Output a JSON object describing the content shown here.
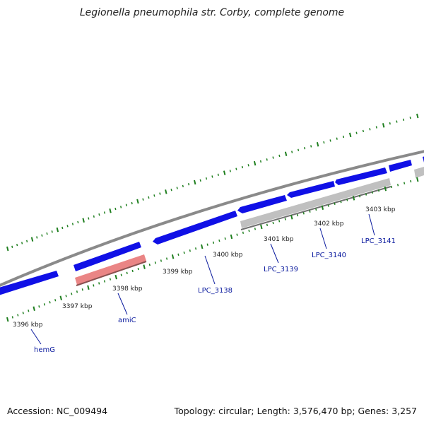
{
  "title": "Legionella pneumophila str. Corby, complete genome",
  "footer": {
    "accession": "Accession: NC_009494",
    "summary": "Topology: circular; Length: 3,576,470 bp; Genes: 3,257"
  },
  "colors": {
    "cds_forward": "#1010e6",
    "cds_reverse_gray": "#c0c0c0",
    "rna": "#ea8585",
    "backbone": "#8a8a8a",
    "ticks": "#1f7f1f",
    "gene_label": "#0a1a9e",
    "scale_label": "#222222"
  },
  "scale_labels": [
    "3396 kbp",
    "3397 kbp",
    "3398 kbp",
    "3399 kbp",
    "3400 kbp",
    "3401 kbp",
    "3402 kbp",
    "3403 kbp"
  ],
  "gene_labels": [
    "hemG",
    "amiC",
    "LPC_3138",
    "LPC_3139",
    "LPC_3140",
    "LPC_3141"
  ]
}
